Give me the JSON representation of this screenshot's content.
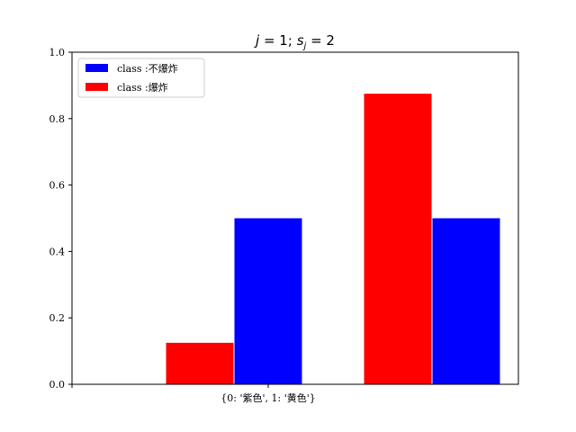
{
  "chart_data": {
    "type": "bar",
    "title": "j = 1; s_j = 2",
    "title_parts": {
      "j": "j",
      "eq1": " = 1; ",
      "s": "s",
      "sub": "j",
      "eq2": " = 2"
    },
    "xlabel": "",
    "ylabel": "",
    "x_tick_label": "{0: '紫色', 1: '黄色'}",
    "ylim": [
      0,
      1.0
    ],
    "yticks": [
      0.0,
      0.2,
      0.4,
      0.6,
      0.8,
      1.0
    ],
    "ytick_labels": [
      "0.0",
      "0.2",
      "0.4",
      "0.6",
      "0.8",
      "1.0"
    ],
    "grid": false,
    "legend_position": "top-left",
    "categories": [
      "0",
      "1"
    ],
    "series": [
      {
        "name": "class :不爆炸",
        "color": "#0000ff",
        "values": [
          0.5,
          0.5
        ]
      },
      {
        "name": "class :爆炸",
        "color": "#ff0000",
        "values": [
          0.125,
          0.875
        ]
      }
    ]
  }
}
